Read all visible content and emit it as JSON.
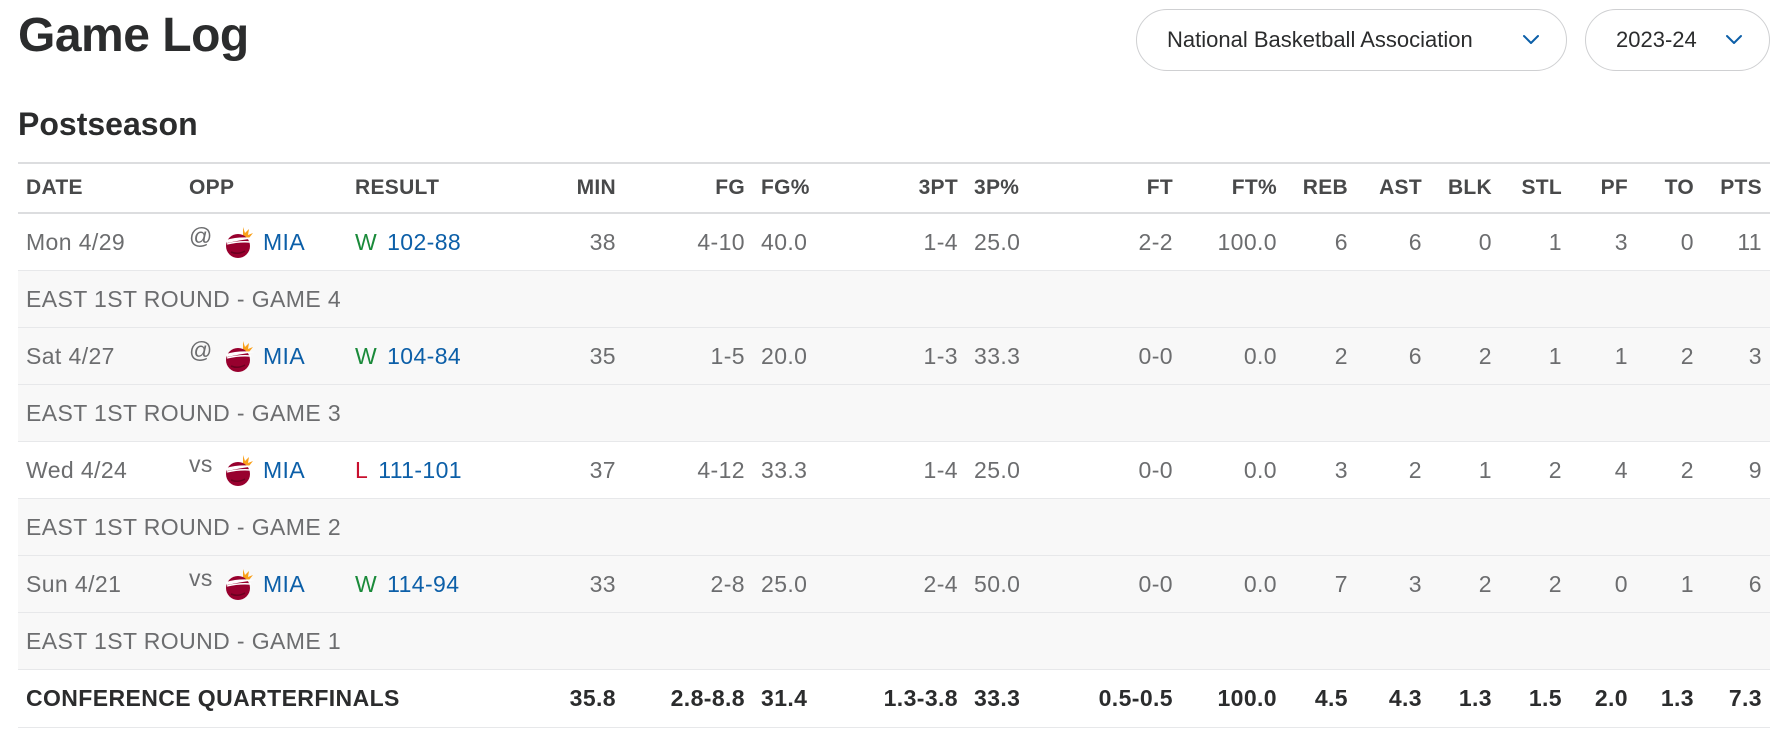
{
  "header": {
    "title": "Game Log",
    "league_select": "National Basketball Association",
    "season_select": "2023-24"
  },
  "section": {
    "title": "Postseason"
  },
  "table": {
    "columns": [
      "DATE",
      "OPP",
      "RESULT",
      "MIN",
      "FG",
      "FG%",
      "3PT",
      "3P%",
      "FT",
      "FT%",
      "REB",
      "AST",
      "BLK",
      "STL",
      "PF",
      "TO",
      "PTS"
    ],
    "rows": [
      {
        "date": "Mon 4/29",
        "prefix": "@",
        "opp": "MIA",
        "outcome": "W",
        "score": "102-88",
        "stats": [
          "38",
          "4-10",
          "40.0",
          "1-4",
          "25.0",
          "2-2",
          "100.0",
          "6",
          "6",
          "0",
          "1",
          "3",
          "0",
          "11"
        ],
        "note": "EAST 1ST ROUND - GAME 4"
      },
      {
        "date": "Sat 4/27",
        "prefix": "@",
        "opp": "MIA",
        "outcome": "W",
        "score": "104-84",
        "stats": [
          "35",
          "1-5",
          "20.0",
          "1-3",
          "33.3",
          "0-0",
          "0.0",
          "2",
          "6",
          "2",
          "1",
          "1",
          "2",
          "3"
        ],
        "note": "EAST 1ST ROUND - GAME 3"
      },
      {
        "date": "Wed 4/24",
        "prefix": "vs",
        "opp": "MIA",
        "outcome": "L",
        "score": "111-101",
        "stats": [
          "37",
          "4-12",
          "33.3",
          "1-4",
          "25.0",
          "0-0",
          "0.0",
          "3",
          "2",
          "1",
          "2",
          "4",
          "2",
          "9"
        ],
        "note": "EAST 1ST ROUND - GAME 2"
      },
      {
        "date": "Sun 4/21",
        "prefix": "vs",
        "opp": "MIA",
        "outcome": "W",
        "score": "114-94",
        "stats": [
          "33",
          "2-8",
          "25.0",
          "2-4",
          "50.0",
          "0-0",
          "0.0",
          "7",
          "3",
          "2",
          "2",
          "0",
          "1",
          "6"
        ],
        "note": "EAST 1ST ROUND - GAME 1"
      }
    ],
    "totals": {
      "label": "CONFERENCE QUARTERFINALS",
      "stats": [
        "35.8",
        "2.8-8.8",
        "31.4",
        "1.3-3.8",
        "33.3",
        "0.5-0.5",
        "100.0",
        "4.5",
        "4.3",
        "1.3",
        "1.5",
        "2.0",
        "1.3",
        "7.3"
      ]
    }
  },
  "icons": {
    "team_logo": "miami-heat-logo-icon",
    "dropdown": "chevron-down-icon"
  },
  "colors": {
    "link": "#0c5fa8",
    "win": "#1a8a3a",
    "loss": "#c8102e",
    "logo_red": "#98002e",
    "logo_flame": "#f9a01b"
  }
}
